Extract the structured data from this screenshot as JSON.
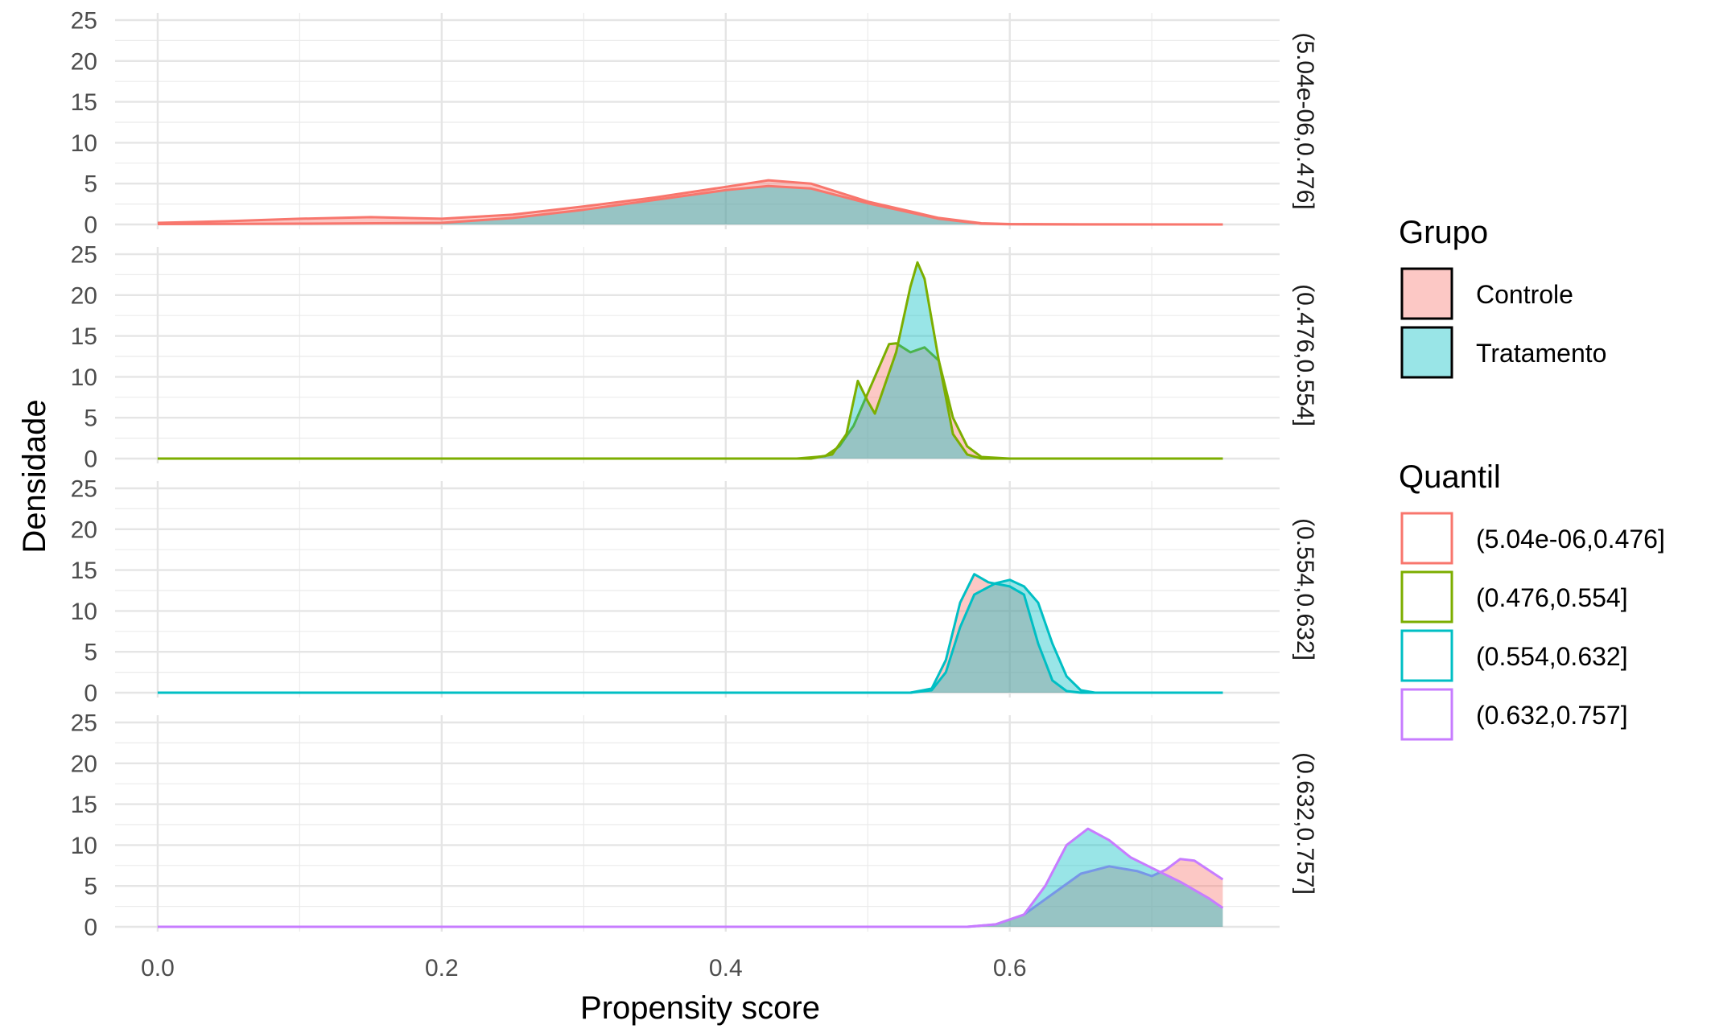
{
  "chart_data": {
    "type": "area",
    "xlabel": "Propensity score",
    "ylabel": "Densidade",
    "xlim": [
      -0.03,
      0.79
    ],
    "ylim": [
      0,
      25
    ],
    "x_ticks": [
      0.0,
      0.2,
      0.4,
      0.6
    ],
    "x_tick_labels": [
      "0.0",
      "0.2",
      "0.4",
      "0.6"
    ],
    "y_ticks": [
      0,
      5,
      10,
      15,
      20,
      25
    ],
    "y_tick_labels": [
      "0",
      "5",
      "10",
      "15",
      "20",
      "25"
    ],
    "grid": true,
    "legend_placement": "right",
    "fill_legend": {
      "title": "Grupo",
      "entries": [
        {
          "name": "Controle",
          "color": "#F8766D"
        },
        {
          "name": "Tratamento",
          "color": "#00BFC4"
        }
      ]
    },
    "color_legend": {
      "title": "Quantil",
      "entries": [
        {
          "name": "(5.04e-06,0.476]",
          "color": "#F8766D"
        },
        {
          "name": "(0.476,0.554]",
          "color": "#7CAE00"
        },
        {
          "name": "(0.554,0.632]",
          "color": "#00BFC4"
        },
        {
          "name": "(0.632,0.757]",
          "color": "#C77CFF"
        }
      ]
    },
    "panels": [
      {
        "label": "(5.04e-06,0.476]",
        "color": "#F8766D",
        "series": [
          {
            "group": "Controle",
            "points": [
              [
                0.0,
                0.2
              ],
              [
                0.05,
                0.4
              ],
              [
                0.1,
                0.7
              ],
              [
                0.15,
                0.9
              ],
              [
                0.2,
                0.7
              ],
              [
                0.25,
                1.2
              ],
              [
                0.3,
                2.2
              ],
              [
                0.35,
                3.3
              ],
              [
                0.4,
                4.6
              ],
              [
                0.43,
                5.4
              ],
              [
                0.46,
                5.0
              ],
              [
                0.5,
                2.8
              ],
              [
                0.55,
                0.8
              ],
              [
                0.58,
                0.15
              ],
              [
                0.6,
                0.05
              ],
              [
                0.65,
                0.0
              ],
              [
                0.75,
                0.0
              ]
            ]
          },
          {
            "group": "Tratamento",
            "points": [
              [
                0.0,
                0.05
              ],
              [
                0.1,
                0.1
              ],
              [
                0.2,
                0.2
              ],
              [
                0.25,
                0.8
              ],
              [
                0.3,
                1.8
              ],
              [
                0.35,
                3.0
              ],
              [
                0.4,
                4.2
              ],
              [
                0.43,
                4.7
              ],
              [
                0.46,
                4.4
              ],
              [
                0.5,
                2.6
              ],
              [
                0.55,
                0.7
              ],
              [
                0.58,
                0.1
              ],
              [
                0.6,
                0.02
              ],
              [
                0.75,
                0.0
              ]
            ]
          }
        ]
      },
      {
        "label": "(0.476,0.554]",
        "color": "#7CAE00",
        "series": [
          {
            "group": "Controle",
            "points": [
              [
                0.0,
                0.0
              ],
              [
                0.45,
                0.0
              ],
              [
                0.47,
                0.3
              ],
              [
                0.48,
                1.5
              ],
              [
                0.49,
                4.0
              ],
              [
                0.5,
                8.0
              ],
              [
                0.51,
                12.0
              ],
              [
                0.515,
                14.0
              ],
              [
                0.52,
                14.1
              ],
              [
                0.53,
                13.0
              ],
              [
                0.54,
                13.6
              ],
              [
                0.55,
                12.0
              ],
              [
                0.56,
                5.0
              ],
              [
                0.57,
                1.5
              ],
              [
                0.58,
                0.2
              ],
              [
                0.6,
                0.0
              ],
              [
                0.75,
                0.0
              ]
            ]
          },
          {
            "group": "Tratamento",
            "points": [
              [
                0.0,
                0.0
              ],
              [
                0.46,
                0.0
              ],
              [
                0.475,
                0.5
              ],
              [
                0.485,
                3.0
              ],
              [
                0.493,
                9.5
              ],
              [
                0.5,
                7.0
              ],
              [
                0.505,
                5.5
              ],
              [
                0.51,
                8.0
              ],
              [
                0.52,
                13.0
              ],
              [
                0.53,
                21.0
              ],
              [
                0.535,
                24.0
              ],
              [
                0.54,
                22.0
              ],
              [
                0.55,
                12.0
              ],
              [
                0.56,
                3.0
              ],
              [
                0.57,
                0.5
              ],
              [
                0.58,
                0.0
              ],
              [
                0.75,
                0.0
              ]
            ]
          }
        ]
      },
      {
        "label": "(0.554,0.632]",
        "color": "#00BFC4",
        "series": [
          {
            "group": "Controle",
            "points": [
              [
                0.0,
                0.0
              ],
              [
                0.53,
                0.0
              ],
              [
                0.545,
                0.5
              ],
              [
                0.555,
                4.0
              ],
              [
                0.565,
                11.0
              ],
              [
                0.575,
                14.5
              ],
              [
                0.585,
                13.5
              ],
              [
                0.6,
                13.0
              ],
              [
                0.61,
                12.0
              ],
              [
                0.62,
                6.0
              ],
              [
                0.63,
                1.5
              ],
              [
                0.64,
                0.2
              ],
              [
                0.65,
                0.0
              ],
              [
                0.75,
                0.0
              ]
            ]
          },
          {
            "group": "Tratamento",
            "points": [
              [
                0.0,
                0.0
              ],
              [
                0.53,
                0.0
              ],
              [
                0.545,
                0.3
              ],
              [
                0.555,
                2.5
              ],
              [
                0.565,
                8.0
              ],
              [
                0.575,
                12.0
              ],
              [
                0.59,
                13.4
              ],
              [
                0.6,
                13.8
              ],
              [
                0.61,
                13.0
              ],
              [
                0.62,
                11.0
              ],
              [
                0.63,
                6.0
              ],
              [
                0.64,
                2.0
              ],
              [
                0.65,
                0.3
              ],
              [
                0.66,
                0.0
              ],
              [
                0.75,
                0.0
              ]
            ]
          }
        ]
      },
      {
        "label": "(0.632,0.757]",
        "color": "#C77CFF",
        "series": [
          {
            "group": "Controle",
            "points": [
              [
                0.0,
                0.0
              ],
              [
                0.57,
                0.0
              ],
              [
                0.59,
                0.3
              ],
              [
                0.61,
                1.5
              ],
              [
                0.63,
                4.0
              ],
              [
                0.65,
                6.5
              ],
              [
                0.67,
                7.4
              ],
              [
                0.69,
                6.8
              ],
              [
                0.7,
                6.2
              ],
              [
                0.71,
                7.0
              ],
              [
                0.72,
                8.3
              ],
              [
                0.73,
                8.1
              ],
              [
                0.75,
                5.8
              ]
            ]
          },
          {
            "group": "Tratamento",
            "points": [
              [
                0.0,
                0.0
              ],
              [
                0.57,
                0.0
              ],
              [
                0.59,
                0.3
              ],
              [
                0.61,
                1.5
              ],
              [
                0.625,
                5.0
              ],
              [
                0.64,
                10.0
              ],
              [
                0.655,
                12.0
              ],
              [
                0.67,
                10.6
              ],
              [
                0.685,
                8.5
              ],
              [
                0.7,
                7.2
              ],
              [
                0.72,
                5.5
              ],
              [
                0.74,
                3.5
              ],
              [
                0.75,
                2.3
              ]
            ]
          }
        ]
      }
    ]
  }
}
